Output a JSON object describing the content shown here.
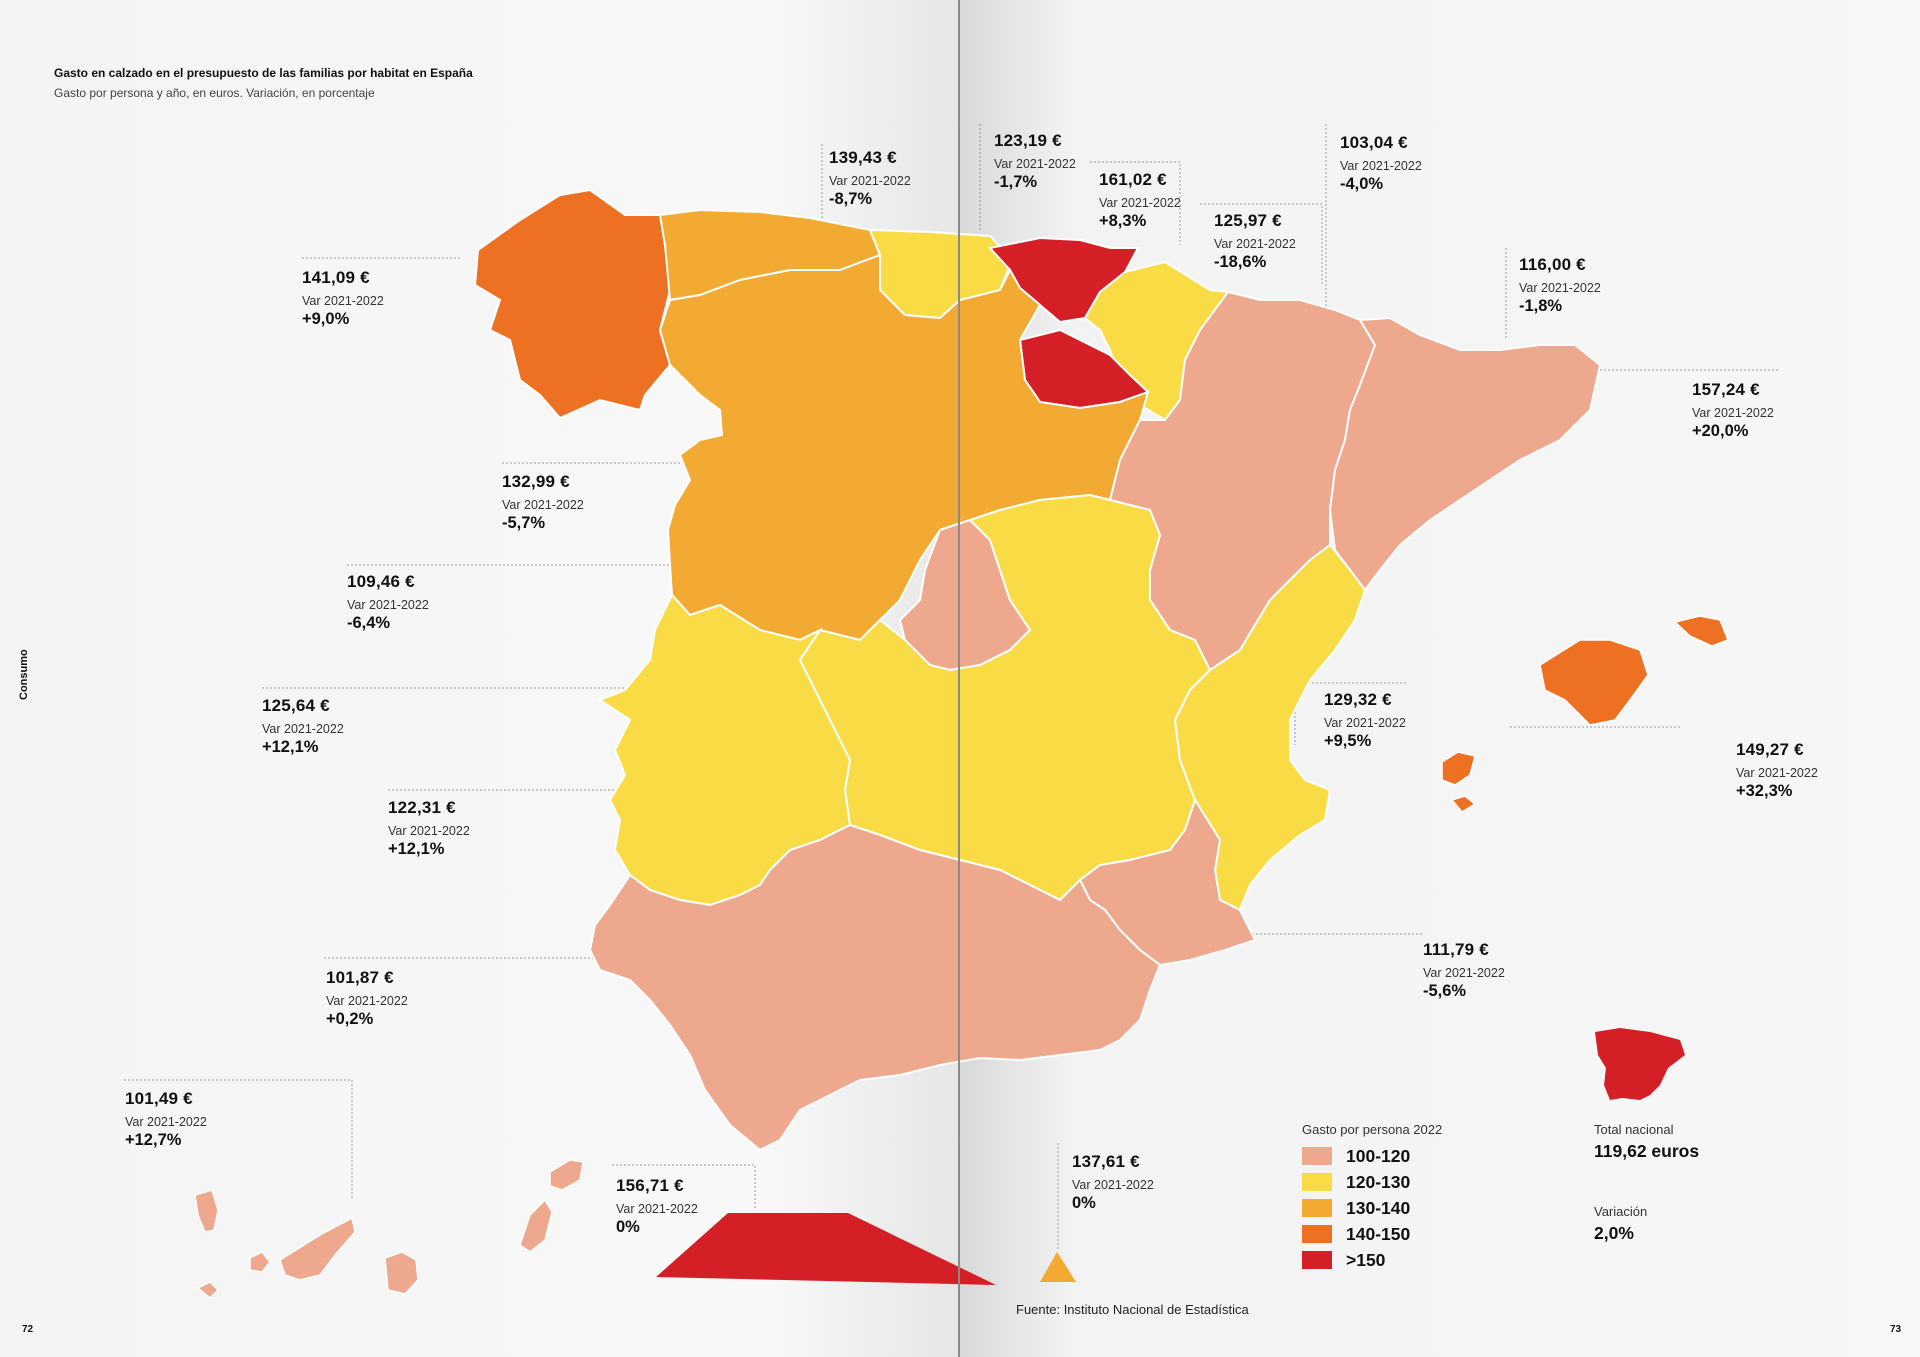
{
  "title": "Gasto en calzado en el presupuesto de las familias por habitat en España",
  "subtitle": "Gasto por persona y año, en euros. Variación, en porcentaje",
  "section": "Consumo",
  "page_left": "72",
  "page_right": "73",
  "source": "Fuente: Instituto Nacional de Estadística",
  "var_label": "Var 2021-2022",
  "colors": {
    "100-120": "#eda88e",
    "120-130": "#f9dc45",
    "130-140": "#f3aa33",
    "140-150": "#ee7123",
    ">150": "#d51f26"
  },
  "legend": {
    "title": "Gasto por persona 2022",
    "items": [
      {
        "range": "100-120",
        "color": "#eda88e"
      },
      {
        "range": "120-130",
        "color": "#f9dc45"
      },
      {
        "range": "130-140",
        "color": "#f3aa33"
      },
      {
        "range": "140-150",
        "color": "#ee7123"
      },
      {
        "range": ">150",
        "color": "#d51f26"
      }
    ]
  },
  "total": {
    "label": "Total nacional",
    "value": "119,62 euros",
    "var_label": "Variación",
    "var_value": "2,0%"
  },
  "regions": {
    "galicia": {
      "amount": "141,09 €",
      "var": "+9,0%"
    },
    "asturias": {
      "amount": "139,43 €",
      "var": "-8,7%"
    },
    "cantabria": {
      "amount": "123,19 €",
      "var": "-1,7%"
    },
    "pais_vasco": {
      "amount": "161,02 €",
      "var": "+8,3%"
    },
    "navarra": {
      "amount": "125,97 €",
      "var": "-18,6%"
    },
    "aragon": {
      "amount": "103,04 €",
      "var": "-4,0%"
    },
    "cataluna": {
      "amount": "116,00 €",
      "var": "-1,8%"
    },
    "la_rioja": {
      "amount": "157,24 €",
      "var": "+20,0%"
    },
    "castilla_leon": {
      "amount": "132,99 €",
      "var": "-5,7%"
    },
    "madrid": {
      "amount": "109,46 €",
      "var": "-6,4%"
    },
    "castilla_mancha": {
      "amount": "125,64 €",
      "var": "+12,1%"
    },
    "extremadura": {
      "amount": "122,31 €",
      "var": "+12,1%"
    },
    "valencia": {
      "amount": "129,32 €",
      "var": "+9,5%"
    },
    "baleares": {
      "amount": "149,27 €",
      "var": "+32,3%"
    },
    "murcia": {
      "amount": "111,79 €",
      "var": "-5,6%"
    },
    "andalucia": {
      "amount": "101,87 €",
      "var": "+0,2%"
    },
    "canarias": {
      "amount": "101,49 €",
      "var": "+12,7%"
    },
    "ceuta": {
      "amount": "156,71 €",
      "var": "0%"
    },
    "melilla": {
      "amount": "137,61 €",
      "var": "0%"
    }
  }
}
